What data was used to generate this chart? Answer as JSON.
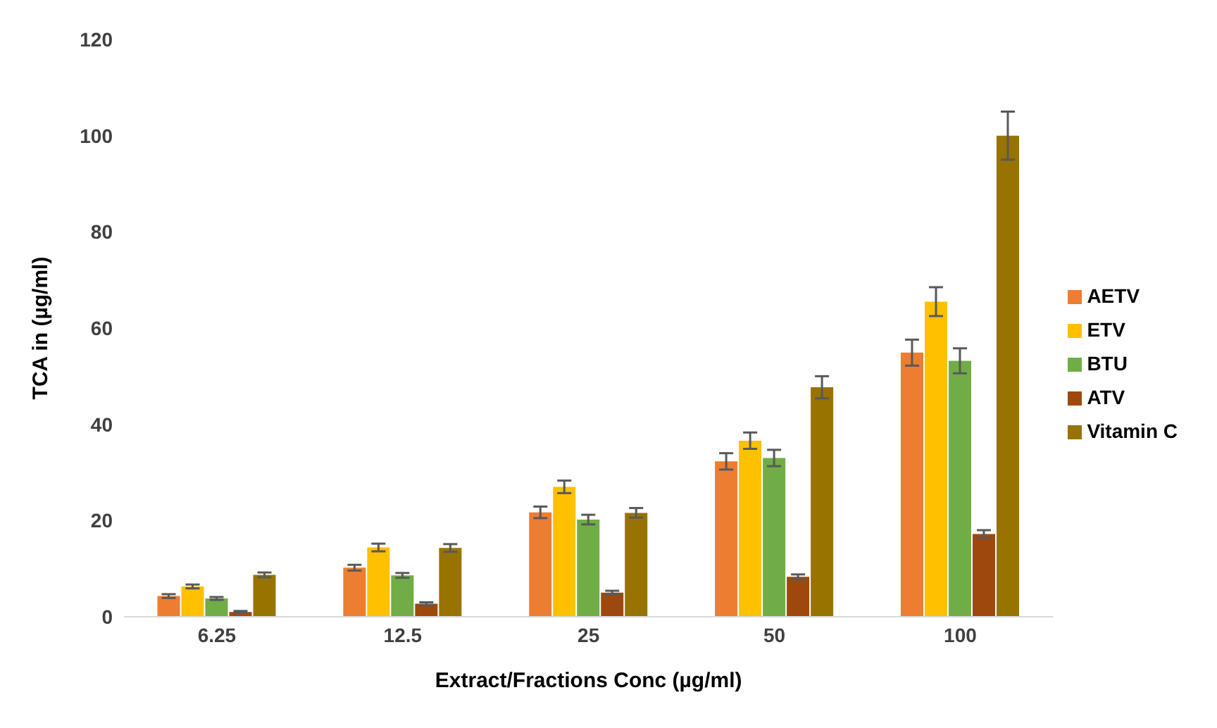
{
  "chart_data": {
    "type": "bar",
    "xlabel": "Extract/Fractions Conc (µg/ml)",
    "ylabel": "TCA in (µg/ml)",
    "categories": [
      "6.25",
      "12.5",
      "25",
      "50",
      "100"
    ],
    "series": [
      {
        "name": "AETV",
        "color": "#ed7d31",
        "values": [
          4.3,
          10.2,
          21.7,
          32.3,
          54.9
        ],
        "errors": [
          0.4,
          0.6,
          1.2,
          1.7,
          2.7
        ]
      },
      {
        "name": "ETV",
        "color": "#ffc000",
        "values": [
          6.3,
          14.4,
          27,
          36.6,
          65.5
        ],
        "errors": [
          0.4,
          0.8,
          1.3,
          1.7,
          3
        ]
      },
      {
        "name": "BTU",
        "color": "#70ad47",
        "values": [
          3.8,
          8.6,
          20.2,
          33,
          53.2
        ],
        "errors": [
          0.3,
          0.5,
          1,
          1.7,
          2.6
        ]
      },
      {
        "name": "ATV",
        "color": "#9e480e",
        "values": [
          1,
          2.7,
          5,
          8.3,
          17.2
        ],
        "errors": [
          0.2,
          0.3,
          0.4,
          0.5,
          0.8
        ]
      },
      {
        "name": "Vitamin C",
        "color": "#997300",
        "values": [
          8.7,
          14.3,
          21.6,
          47.7,
          100
        ],
        "errors": [
          0.5,
          0.8,
          1,
          2.3,
          5
        ]
      }
    ],
    "ylim": [
      0,
      120
    ],
    "yticks": [
      0,
      20,
      40,
      60,
      80,
      100,
      120
    ],
    "grid": false,
    "legend": "right"
  }
}
